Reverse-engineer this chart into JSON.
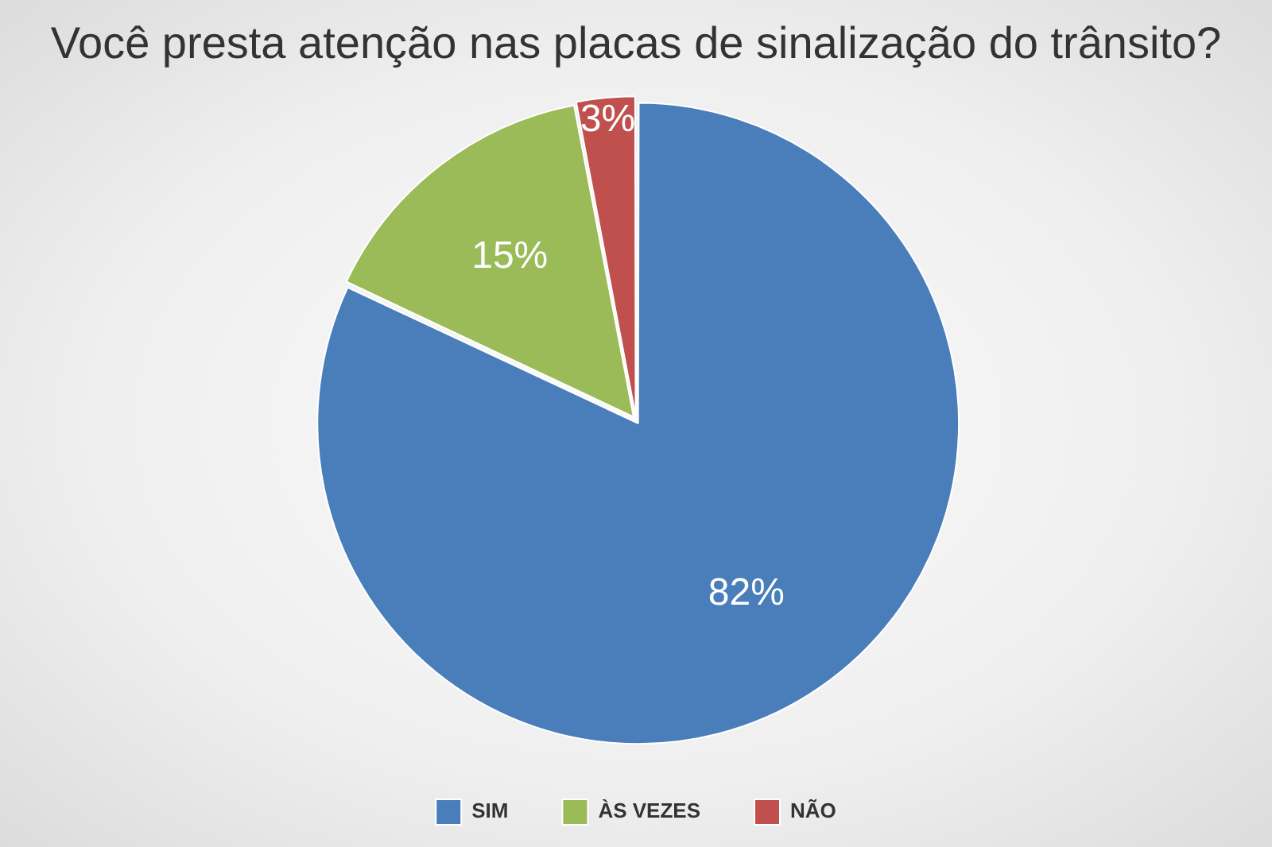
{
  "chart_data": {
    "type": "pie",
    "title": "Você presta atenção nas placas de sinalização do trânsito?",
    "categories": [
      "SIM",
      "ÀS VEZES",
      "NÃO"
    ],
    "values": [
      82,
      15,
      3
    ],
    "colors": [
      "#4a7ebb",
      "#9bbb59",
      "#c0504d"
    ],
    "value_labels": [
      "82%",
      "15%",
      "3%"
    ],
    "legend": "bottom"
  }
}
